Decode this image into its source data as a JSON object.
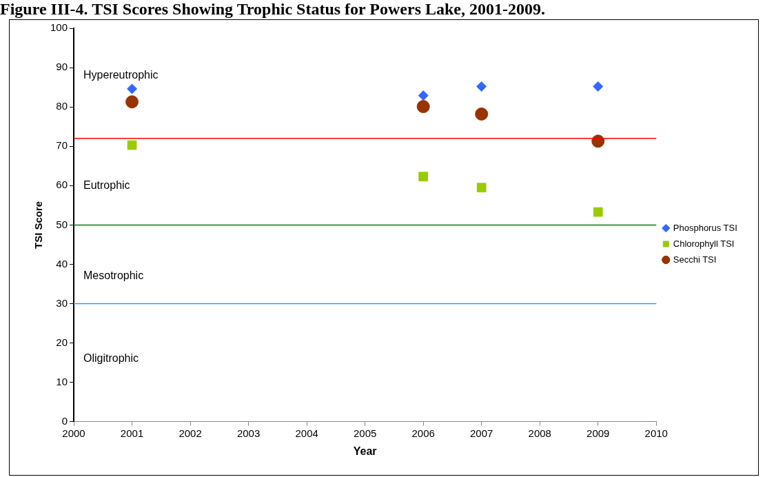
{
  "chart_data": {
    "type": "scatter",
    "title": "Figure III-4.  TSI Scores Showing Trophic Status for Powers Lake, 2001-2009.",
    "xlabel": "Year",
    "ylabel": "TSI Score",
    "x": [
      2001,
      2006,
      2007,
      2009
    ],
    "series": [
      {
        "name": "Phosphorus TSI",
        "color": "#3366ff",
        "marker": "diamond",
        "values": [
          84.6,
          82.9,
          85.2,
          85.2
        ]
      },
      {
        "name": "Chlorophyll TSI",
        "color": "#99cc00",
        "marker": "square",
        "values": [
          70.3,
          62.3,
          59.5,
          53.3
        ]
      },
      {
        "name": "Secchi TSI",
        "color": "#993300",
        "marker": "circle",
        "values": [
          81.3,
          80.1,
          78.2,
          71.3
        ]
      }
    ],
    "xlim": [
      2000,
      2010
    ],
    "xticks": [
      2000,
      2001,
      2002,
      2003,
      2004,
      2005,
      2006,
      2007,
      2008,
      2009,
      2010
    ],
    "ylim": [
      0,
      100
    ],
    "yticks": [
      0,
      10,
      20,
      30,
      40,
      50,
      60,
      70,
      80,
      90,
      100
    ],
    "ref_lines": [
      {
        "axis": "y",
        "value": 72,
        "color": "#ff0000"
      },
      {
        "axis": "y",
        "value": 50,
        "color": "#008000"
      },
      {
        "axis": "y",
        "value": 30,
        "color": "#3399ff"
      }
    ],
    "annotations": [
      "Hypereutrophic",
      "Eutrophic",
      "Mesotrophic",
      "Oligitrophic"
    ],
    "grid": false,
    "legend": "right"
  }
}
